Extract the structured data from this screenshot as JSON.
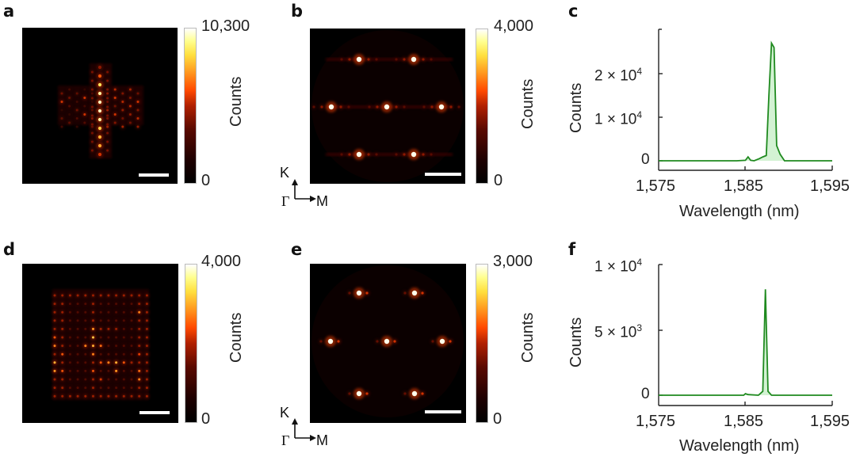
{
  "figure": {
    "panels": [
      {
        "id": "a",
        "label": "a",
        "type": "real-space image",
        "colorbar": {
          "max_label": "10,300",
          "min_label": "0",
          "title": "Counts"
        }
      },
      {
        "id": "b",
        "label": "b",
        "type": "momentum-space image",
        "colorbar": {
          "max_label": "4,000",
          "min_label": "0",
          "title": "Counts"
        },
        "axes_indicator": {
          "up": "K",
          "origin": "Γ",
          "right": "M"
        }
      },
      {
        "id": "c",
        "label": "c",
        "type": "spectrum"
      },
      {
        "id": "d",
        "label": "d",
        "type": "real-space image",
        "colorbar": {
          "max_label": "4,000",
          "min_label": "0",
          "title": "Counts"
        }
      },
      {
        "id": "e",
        "label": "e",
        "type": "momentum-space image",
        "colorbar": {
          "max_label": "3,000",
          "min_label": "0",
          "title": "Counts"
        },
        "axes_indicator": {
          "up": "K",
          "origin": "Γ",
          "right": "M"
        }
      },
      {
        "id": "f",
        "label": "f",
        "type": "spectrum"
      }
    ],
    "line_color": "#1f8a1f",
    "fill_color": "#c8efc8"
  },
  "chart_data": [
    {
      "panel": "a",
      "type": "heatmap",
      "title": "",
      "colorbar_range": [
        0,
        10300
      ],
      "colorbar_label": "Counts",
      "colorbar_ticks": [
        "0",
        "10,300"
      ],
      "description": "Cross-shaped lattice emission: bright central vertical column of spots with fainter horizontal arms",
      "scale_bar": true
    },
    {
      "panel": "b",
      "type": "heatmap",
      "title": "",
      "colorbar_range": [
        0,
        4000
      ],
      "colorbar_label": "Counts",
      "colorbar_ticks": [
        "0",
        "4,000"
      ],
      "description": "Far-field pattern with 7 bright spots in hexagonal arrangement (2 top, 3 middle, 2 bottom)",
      "axes_indicator": [
        "K",
        "Γ",
        "M"
      ],
      "scale_bar": true
    },
    {
      "panel": "c",
      "type": "line",
      "title": "",
      "xlabel": "Wavelength (nm)",
      "ylabel": "Counts",
      "xlim": [
        1575,
        1595
      ],
      "ylim": [
        -2000,
        30000
      ],
      "xticks": [
        "1,575",
        "1,585",
        "1,595"
      ],
      "yticks": [
        "0",
        "1 × 10^4",
        "2 × 10^4"
      ],
      "grid": false,
      "series": [
        {
          "name": "spectrum",
          "x": [
            1575,
            1580,
            1584,
            1585.0,
            1585.3,
            1585.6,
            1586.0,
            1586.6,
            1587.0,
            1587.4,
            1587.7,
            1588.0,
            1588.3,
            1588.6,
            1589.0,
            1589.5,
            1591,
            1595
          ],
          "values": [
            0,
            0,
            0,
            100,
            900,
            100,
            0,
            500,
            900,
            1200,
            15000,
            27000,
            26000,
            3500,
            1500,
            0,
            0,
            0
          ]
        }
      ],
      "peak": {
        "x": 1588,
        "y": 27000
      }
    },
    {
      "panel": "d",
      "type": "heatmap",
      "title": "",
      "colorbar_range": [
        0,
        4000
      ],
      "colorbar_label": "Counts",
      "colorbar_ticks": [
        "0",
        "4,000"
      ],
      "description": "Rectangular frame lattice emission with internal pattern of bright spots",
      "scale_bar": true
    },
    {
      "panel": "e",
      "type": "heatmap",
      "title": "",
      "colorbar_range": [
        0,
        3000
      ],
      "colorbar_label": "Counts",
      "colorbar_ticks": [
        "0",
        "3,000"
      ],
      "description": "Far-field pattern with 7 bright spots in hexagonal arrangement",
      "axes_indicator": [
        "K",
        "Γ",
        "M"
      ],
      "scale_bar": true
    },
    {
      "panel": "f",
      "type": "line",
      "title": "",
      "xlabel": "Wavelength (nm)",
      "ylabel": "Counts",
      "xlim": [
        1575,
        1595
      ],
      "ylim": [
        -700,
        10000
      ],
      "xticks": [
        "1,575",
        "1,585",
        "1,595"
      ],
      "yticks": [
        "0",
        "5 × 10^3",
        "1 × 10^4"
      ],
      "grid": false,
      "series": [
        {
          "name": "spectrum",
          "x": [
            1575,
            1580,
            1584.8,
            1585.0,
            1585.3,
            1586.5,
            1587.0,
            1587.3,
            1587.6,
            1588.0,
            1590,
            1595
          ],
          "values": [
            0,
            0,
            0,
            120,
            50,
            0,
            300,
            8100,
            300,
            0,
            0,
            0
          ]
        }
      ],
      "peak": {
        "x": 1587.3,
        "y": 8100
      }
    }
  ],
  "text": {
    "counts": "Counts",
    "wavelength": "Wavelength (nm)",
    "x_tick_1575": "1,575",
    "x_tick_1585": "1,585",
    "x_tick_1595": "1,595",
    "c_y0": "0",
    "c_y1": "1 × 10",
    "c_y2": "2 × 10",
    "f_y0": "0",
    "f_y1": "5 × 10",
    "f_y2": "1 × 10",
    "exp4": "4",
    "exp3": "3"
  }
}
